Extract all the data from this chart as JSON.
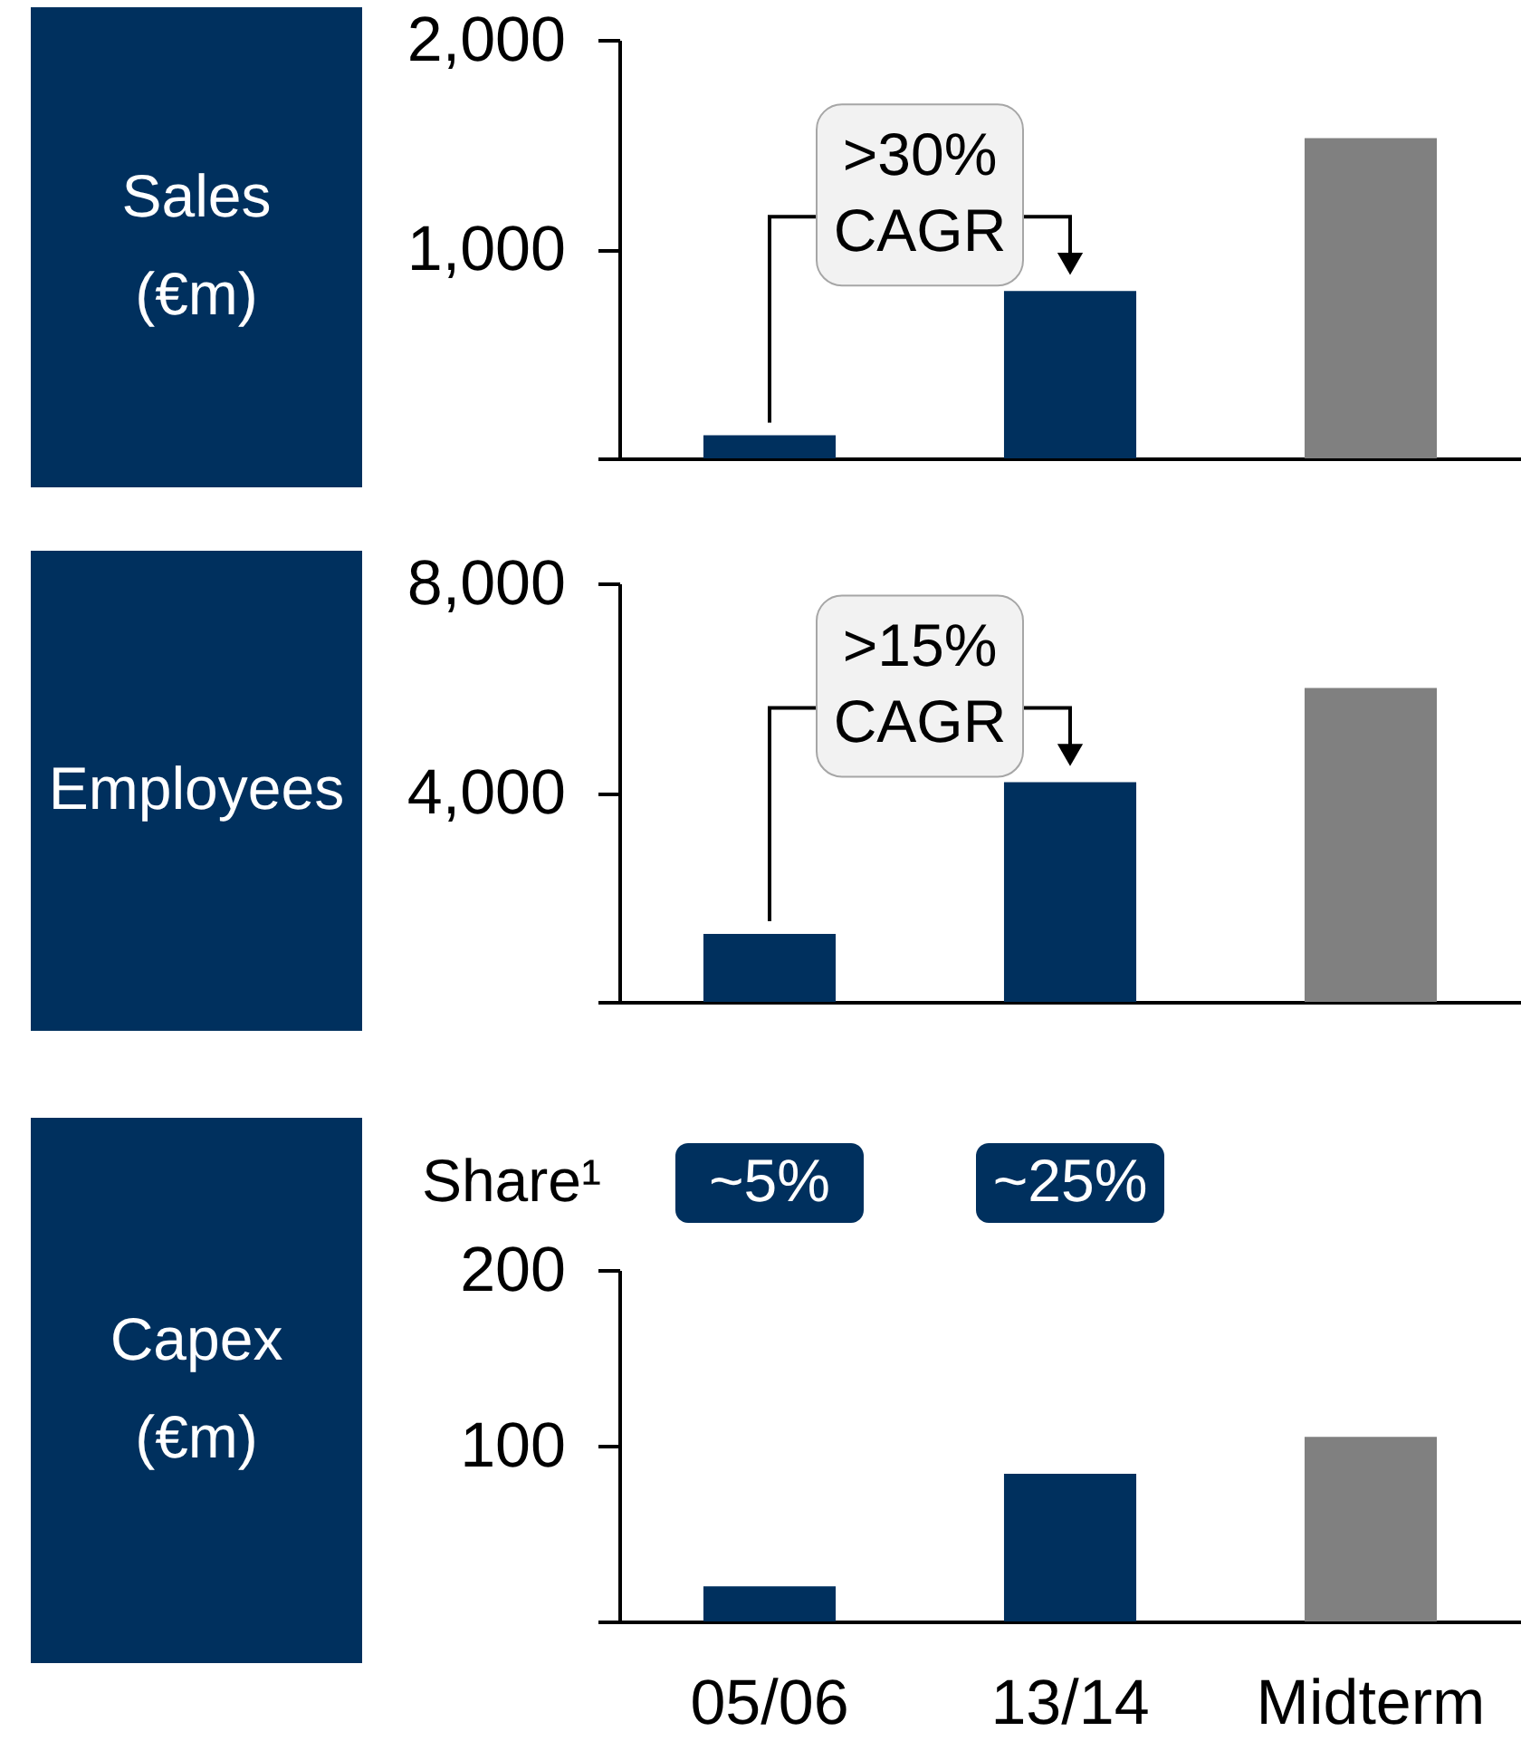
{
  "chart_data": [
    {
      "type": "bar",
      "ylabel": "Sales (€m)",
      "categories": [
        "05/06",
        "13/14",
        "Midterm"
      ],
      "values": [
        110,
        800,
        1530
      ],
      "colors": [
        "#00305e",
        "#00305e",
        "#808080"
      ],
      "ylim": [
        0,
        2000
      ],
      "yticks": [
        {
          "value": 0,
          "label": null
        },
        {
          "value": 1000,
          "label": "1,000"
        },
        {
          "value": 2000,
          "label": "2,000"
        }
      ],
      "tick_labels": "y",
      "annotations": [
        {
          "text": ">30% CAGR",
          "x": "13/14",
          "y": 800
        }
      ]
    },
    {
      "type": "bar",
      "ylabel": "Employees",
      "categories": [
        "05/06",
        "13/14",
        "Midterm"
      ],
      "values": [
        1300,
        4200,
        6000
      ],
      "colors": [
        "#00305e",
        "#00305e",
        "#808080"
      ],
      "ylim": [
        0,
        8000
      ],
      "yticks": [
        {
          "value": 0,
          "label": null
        },
        {
          "value": 4000,
          "label": "4,000"
        },
        {
          "value": 8000,
          "label": "8,000"
        }
      ],
      "tick_labels": "y",
      "annotations": [
        {
          "text": ">15% CAGR",
          "x": "13/14",
          "y": 4200
        }
      ]
    },
    {
      "type": "bar",
      "ylabel": "Capex (€m)",
      "categories": [
        "05/06",
        "13/14",
        "Midterm"
      ],
      "values": [
        20,
        84,
        105
      ],
      "colors": [
        "#00305e",
        "#00305e",
        "#808080"
      ],
      "ylim": [
        0,
        200
      ],
      "yticks": [
        {
          "value": 0,
          "label": null
        },
        100,
        200
      ],
      "annotations": [
        "Share¹",
        "~5%",
        "~25%"
      ]
    }
  ]
}
